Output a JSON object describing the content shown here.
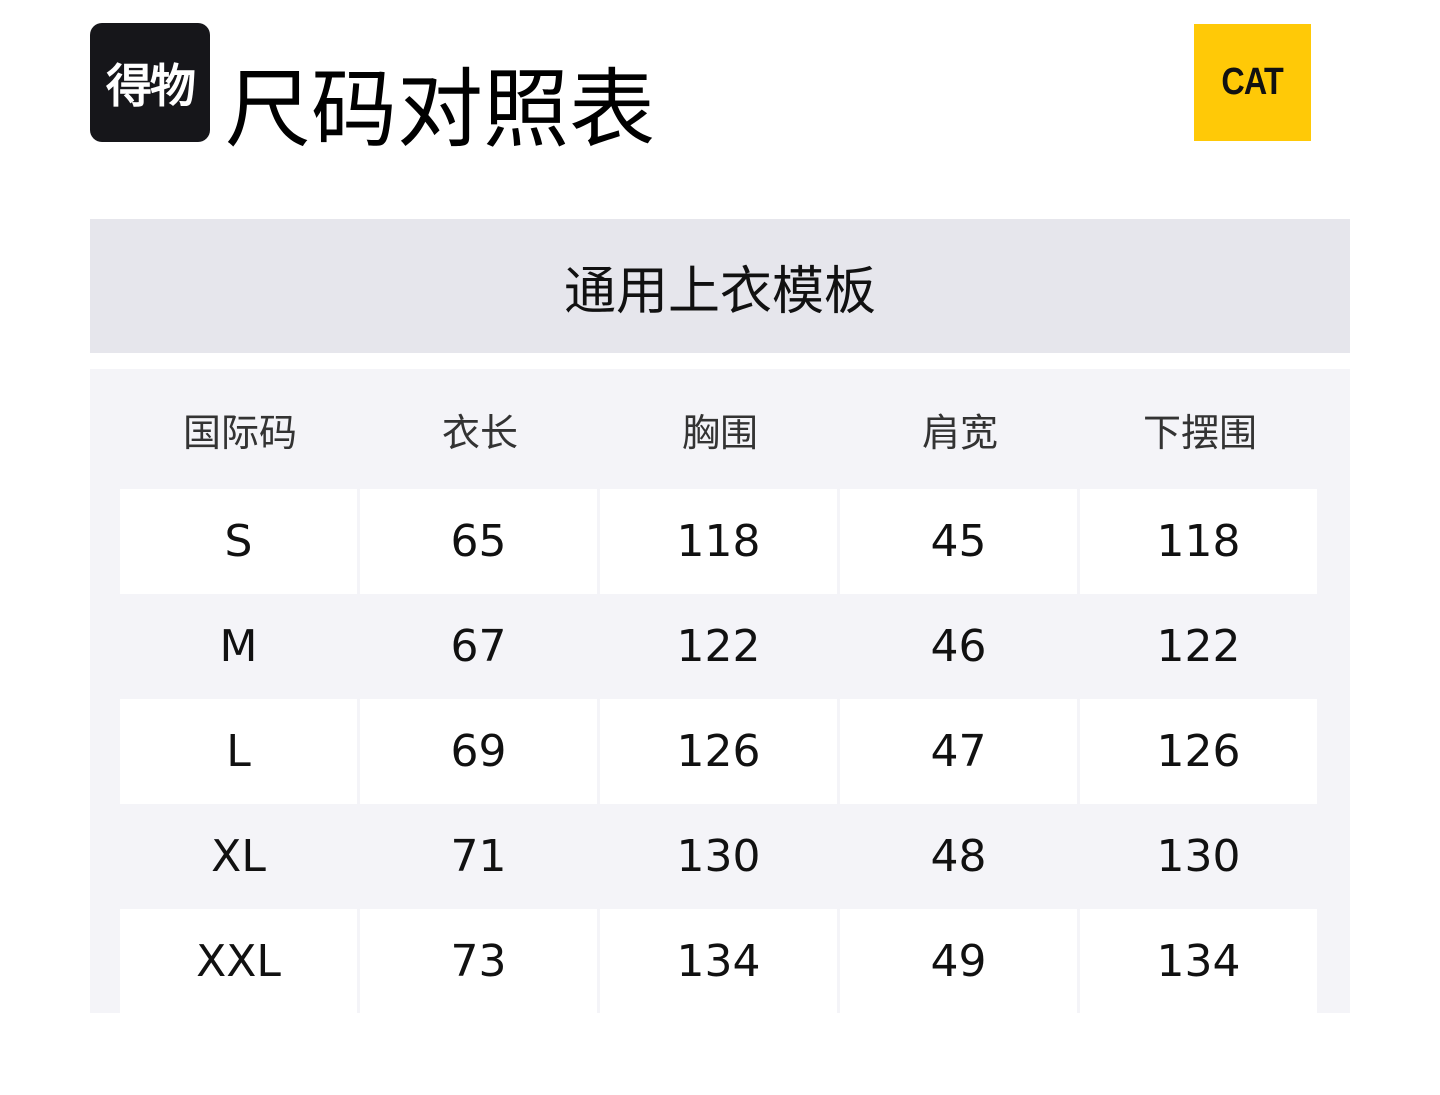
{
  "logo_left": {
    "text": "得物"
  },
  "title": "尺码对照表",
  "logo_right": {
    "text": "CAT",
    "color": "#ffc907"
  },
  "template_name": "通用上衣模板",
  "table": {
    "headers": [
      "国际码",
      "衣长",
      "胸围",
      "肩宽",
      "下摆围"
    ],
    "rows": [
      [
        "S",
        "65",
        "118",
        "45",
        "118"
      ],
      [
        "M",
        "67",
        "122",
        "46",
        "122"
      ],
      [
        "L",
        "69",
        "126",
        "47",
        "126"
      ],
      [
        "XL",
        "71",
        "130",
        "48",
        "130"
      ],
      [
        "XXL",
        "73",
        "134",
        "49",
        "134"
      ]
    ]
  }
}
